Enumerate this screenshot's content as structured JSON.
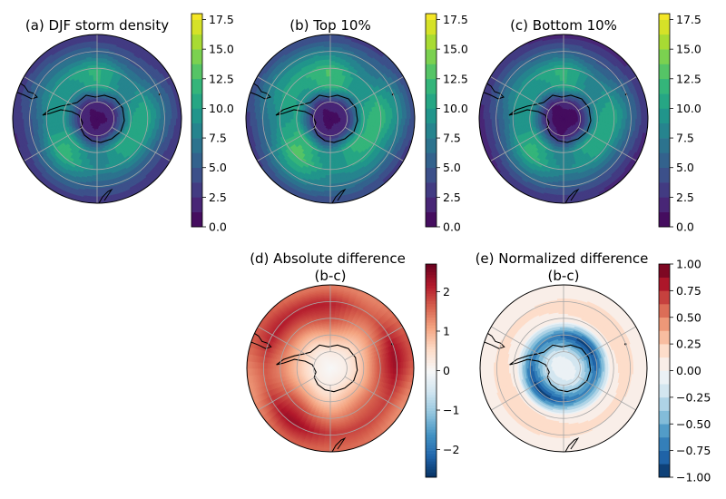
{
  "chart_data": [
    {
      "panel": "a",
      "type": "heatmap",
      "title": "(a) DJF storm density",
      "projection": "south-polar-stereographic",
      "colormap": "viridis",
      "levels": [
        0,
        1.25,
        2.5,
        3.75,
        5,
        6.25,
        7.5,
        8.75,
        10,
        11.25,
        12.5,
        13.75,
        15,
        16.25,
        17.5,
        18
      ],
      "colorbar_ticks": [
        "0.0",
        "2.5",
        "5.0",
        "7.5",
        "10.0",
        "12.5",
        "15.0",
        "17.5"
      ],
      "colorbar_range": [
        0,
        18
      ],
      "field_profile": {
        "colat_deg": [
          0,
          10,
          20,
          30,
          40,
          50
        ],
        "values": [
          0.5,
          2,
          9.5,
          10,
          6,
          3
        ]
      }
    },
    {
      "panel": "b",
      "type": "heatmap",
      "title": "(b) Top 10%",
      "projection": "south-polar-stereographic",
      "colormap": "viridis",
      "levels": [
        0,
        1.25,
        2.5,
        3.75,
        5,
        6.25,
        7.5,
        8.75,
        10,
        11.25,
        12.5,
        13.75,
        15,
        16.25,
        17.5,
        18
      ],
      "colorbar_ticks": [
        "0.0",
        "2.5",
        "5.0",
        "7.5",
        "10.0",
        "12.5",
        "15.0",
        "17.5"
      ],
      "colorbar_range": [
        0,
        18
      ],
      "field_profile": {
        "colat_deg": [
          0,
          10,
          20,
          30,
          40,
          50
        ],
        "values": [
          0.5,
          2,
          10.5,
          11,
          8,
          4
        ]
      }
    },
    {
      "panel": "c",
      "type": "heatmap",
      "title": "(c) Bottom 10%",
      "projection": "south-polar-stereographic",
      "colormap": "viridis",
      "levels": [
        0,
        1.25,
        2.5,
        3.75,
        5,
        6.25,
        7.5,
        8.75,
        10,
        11.25,
        12.5,
        13.75,
        15,
        16.25,
        17.5,
        18
      ],
      "colorbar_ticks": [
        "0.0",
        "2.5",
        "5.0",
        "7.5",
        "10.0",
        "12.5",
        "15.0",
        "17.5"
      ],
      "colorbar_range": [
        0,
        18
      ],
      "field_profile": {
        "colat_deg": [
          0,
          10,
          20,
          30,
          40,
          50
        ],
        "values": [
          0.5,
          1.5,
          9.5,
          10,
          6,
          2.5
        ]
      }
    },
    {
      "panel": "d",
      "type": "heatmap",
      "title": [
        "(d) Absolute difference",
        "(b-c)"
      ],
      "projection": "south-polar-stereographic",
      "colormap": "RdBu_r",
      "colorbar_ticks": [
        "2",
        "1",
        "0",
        "−1",
        "−2"
      ],
      "colorbar_range": [
        -2.7,
        2.7
      ],
      "field_profile": {
        "colat_deg": [
          0,
          10,
          20,
          30,
          40,
          50
        ],
        "values": [
          0,
          0.2,
          0.8,
          1.5,
          2,
          1.5
        ]
      }
    },
    {
      "panel": "e",
      "type": "heatmap",
      "title": [
        "(e) Normalized difference",
        "(b-c)"
      ],
      "projection": "south-polar-stereographic",
      "colormap": "RdBu_r",
      "levels": [
        -1,
        -0.875,
        -0.75,
        -0.625,
        -0.5,
        -0.375,
        -0.25,
        -0.125,
        0,
        0.125,
        0.25,
        0.375,
        0.5,
        0.625,
        0.75,
        0.875,
        1
      ],
      "colorbar_ticks": [
        "1.00",
        "0.75",
        "0.50",
        "0.25",
        "0.00",
        "−0.25",
        "−0.50",
        "−0.75",
        "−1.00"
      ],
      "colorbar_range": [
        -1,
        1
      ],
      "field_profile": {
        "colat_deg": [
          0,
          10,
          20,
          30,
          40,
          50
        ],
        "values": [
          0,
          -0.2,
          -0.9,
          0.1,
          0.2,
          0
        ]
      }
    }
  ]
}
